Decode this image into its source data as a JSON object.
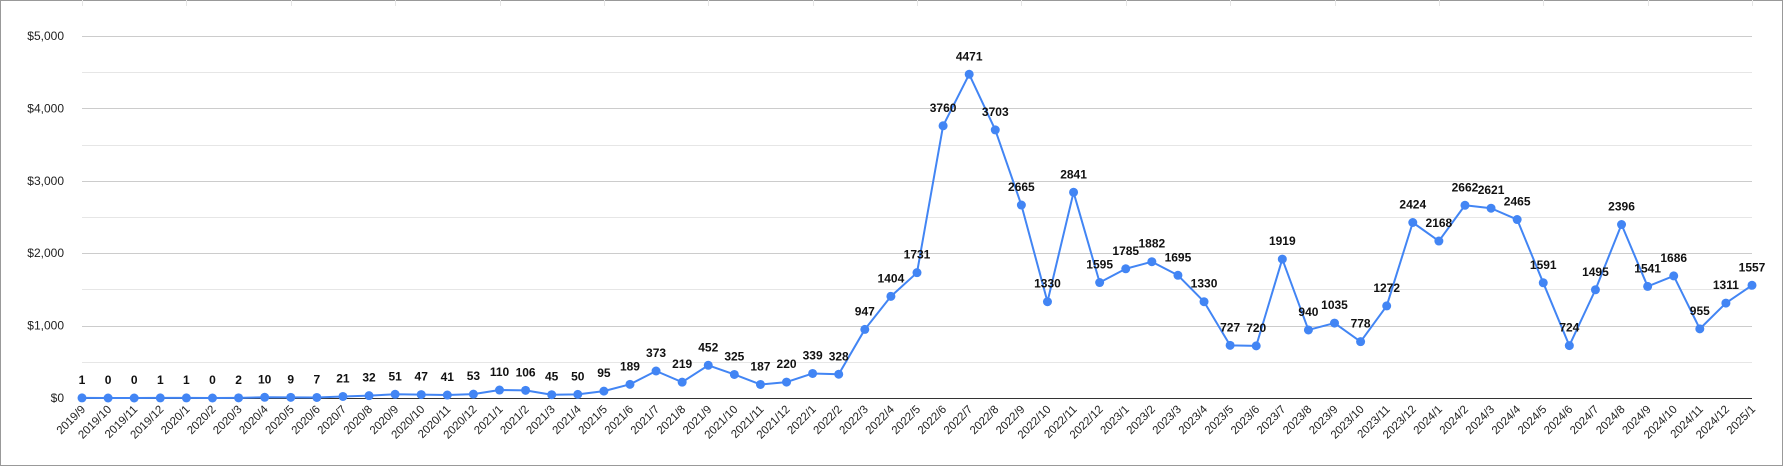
{
  "chart_data": {
    "type": "line",
    "title": "",
    "xlabel": "",
    "ylabel": "",
    "ylim": [
      0,
      5000
    ],
    "y_ticks": [
      0,
      1000,
      2000,
      3000,
      4000,
      5000
    ],
    "y_tick_labels": [
      "$0",
      "$1,000",
      "$2,000",
      "$3,000",
      "$4,000",
      "$5,000"
    ],
    "grid": true,
    "legend": "none",
    "line_color": "#4285f4",
    "x": [
      "2019/9",
      "2019/10",
      "2019/11",
      "2019/12",
      "2020/1",
      "2020/2",
      "2020/3",
      "2020/4",
      "2020/5",
      "2020/6",
      "2020/7",
      "2020/8",
      "2020/9",
      "2020/10",
      "2020/11",
      "2020/12",
      "2021/1",
      "2021/2",
      "2021/3",
      "2021/4",
      "2021/5",
      "2021/6",
      "2021/7",
      "2021/8",
      "2021/9",
      "2021/10",
      "2021/11",
      "2021/12",
      "2022/1",
      "2022/2",
      "2022/3",
      "2022/4",
      "2022/5",
      "2022/6",
      "2022/7",
      "2022/8",
      "2022/9",
      "2022/10",
      "2022/11",
      "2022/12",
      "2023/1",
      "2023/2",
      "2023/3",
      "2023/4",
      "2023/5",
      "2023/6",
      "2023/7",
      "2023/8",
      "2023/9",
      "2023/10",
      "2023/11",
      "2023/12",
      "2024/1",
      "2024/2",
      "2024/3",
      "2024/4",
      "2024/5",
      "2024/6",
      "2024/7",
      "2024/8",
      "2024/9",
      "2024/10",
      "2024/11",
      "2024/12",
      "2025/1"
    ],
    "series": [
      {
        "values": [
          1,
          0,
          0,
          1,
          1,
          0,
          2,
          10,
          9,
          7,
          21,
          32,
          51,
          47,
          41,
          53,
          110,
          106,
          45,
          50,
          95,
          189,
          373,
          219,
          452,
          325,
          187,
          220,
          339,
          328,
          947,
          1404,
          1731,
          3760,
          4471,
          3703,
          2665,
          1330,
          2841,
          1595,
          1785,
          1882,
          1695,
          1330,
          727,
          720,
          1919,
          940,
          1035,
          778,
          1272,
          2424,
          2168,
          2662,
          2621,
          2465,
          1591,
          724,
          1495,
          2396,
          1541,
          1686,
          955,
          1311,
          1557
        ],
        "data_labels": [
          "1",
          "0",
          "0",
          "1",
          "1",
          "0",
          "2",
          "10",
          "9",
          "7",
          "21",
          "32",
          "51",
          "47",
          "41",
          "53",
          "110",
          "106",
          "45",
          "50",
          "95",
          "189",
          "373",
          "219",
          "452",
          "325",
          "187",
          "220",
          "339",
          "328",
          "947",
          "1404",
          "1731",
          "3760",
          "4471",
          "3703",
          "2665",
          "1330",
          "2841",
          "1595",
          "1785",
          "1882",
          "1695",
          "1330",
          "727",
          "720",
          "1919",
          "940",
          "1035",
          "778",
          "1272",
          "2424",
          "2168",
          "2662",
          "2621",
          "2465",
          "1591",
          "724",
          "1495",
          "2396",
          "1541",
          "1686",
          "955",
          "1311",
          "1557"
        ]
      }
    ]
  }
}
